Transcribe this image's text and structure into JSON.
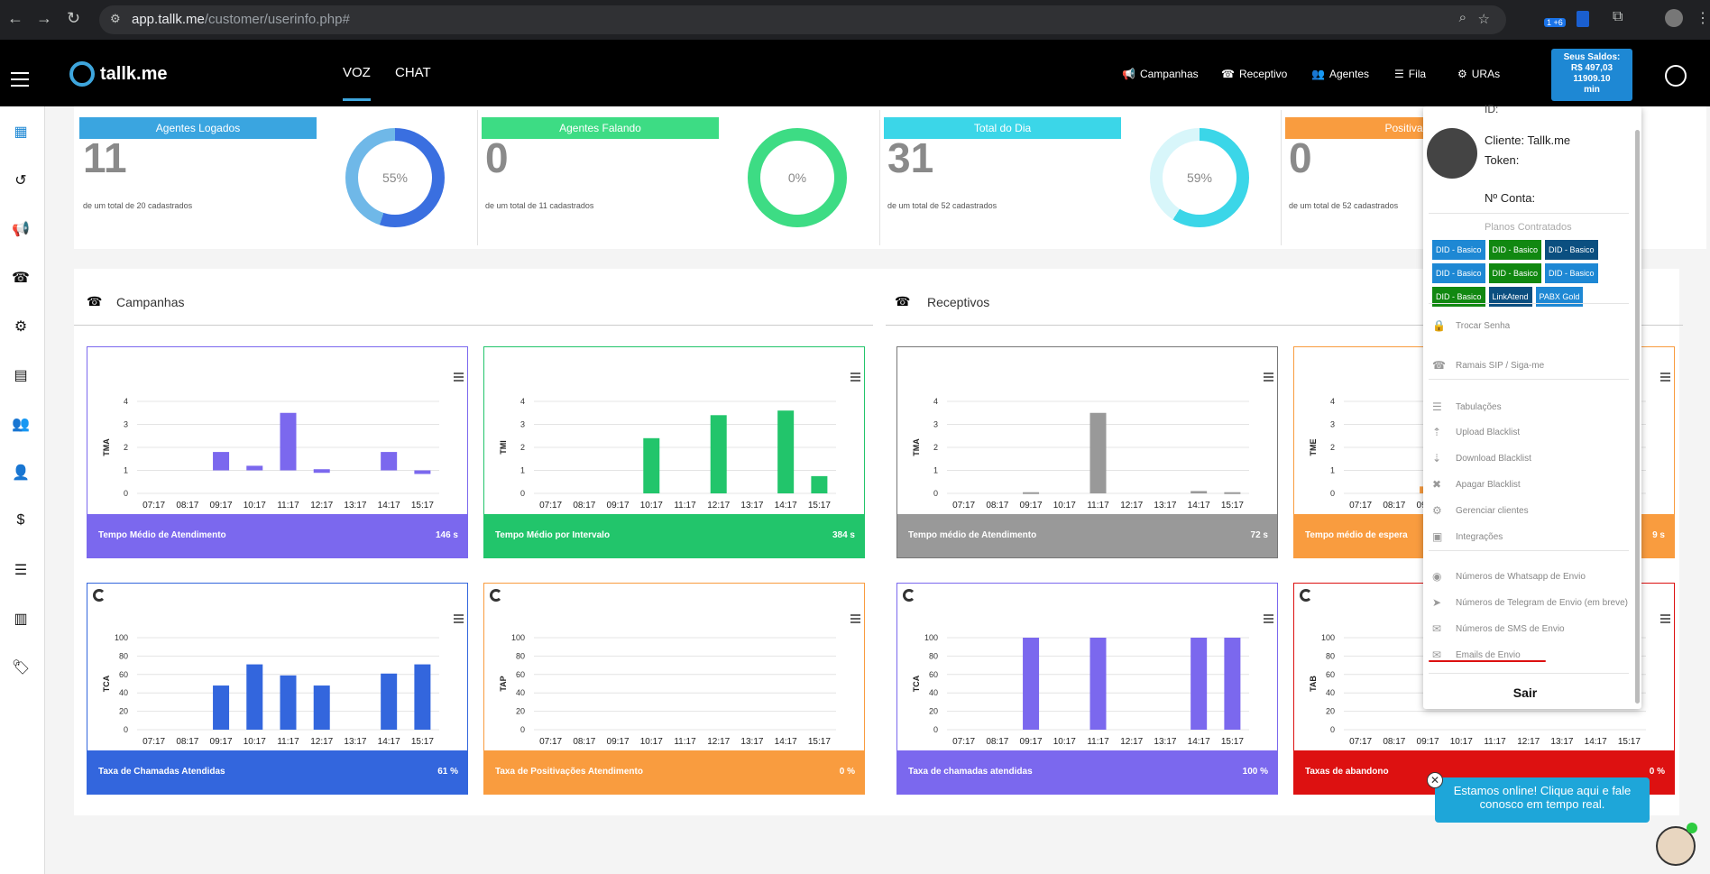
{
  "browser": {
    "url_host": "app.tallk.me",
    "url_path": "/customer/userinfo.php#",
    "ext_badge": "1 +6"
  },
  "header": {
    "logo": "tallk.me",
    "tabs": [
      "VOZ",
      "CHAT"
    ],
    "nav": [
      "Campanhas",
      "Receptivo",
      "Agentes",
      "Fila",
      "URAs"
    ],
    "saldo": [
      "Seus Saldos:",
      "R$ 497,03",
      "11909.10",
      "min"
    ]
  },
  "stats": [
    {
      "label": "Agentes Logados",
      "value": "11",
      "sub": "de um total de 20 cadastrados",
      "pct": 55,
      "pct_label": "55%",
      "color": "#3aa5e0",
      "ring": "#3a6fe0"
    },
    {
      "label": "Agentes Falando",
      "value": "0",
      "sub": "de um total de 11 cadastrados",
      "pct": 0,
      "pct_label": "0%",
      "color": "#3ddc84",
      "ring": "#3ddc84"
    },
    {
      "label": "Total do Dia",
      "value": "31",
      "sub": "de um total de 52 cadastrados",
      "pct": 59,
      "pct_label": "59%",
      "color": "#3bd6e8",
      "ring": "#3bd6e8"
    },
    {
      "label": "Positiva",
      "value": "0",
      "sub": "de um total de 52 cadastrados",
      "pct": 0,
      "pct_label": "",
      "color": "#f99c3f",
      "ring": "#f99c3f"
    }
  ],
  "sections": {
    "left": "Campanhas",
    "right": "Receptivos"
  },
  "charts": [
    {
      "ylabel": "TMA",
      "ymax": 4,
      "ticks": [
        0,
        1,
        2,
        3,
        4
      ],
      "values": [
        0,
        0,
        1.8,
        1.2,
        3.5,
        1.05,
        0,
        1.8,
        0.9
      ],
      "base": 1,
      "color": "#7b68ee",
      "footer": "Tempo Médio de Atendimento",
      "total": "146 s",
      "spinner": false
    },
    {
      "ylabel": "TMI",
      "ymax": 4,
      "ticks": [
        0,
        1,
        2,
        3,
        4
      ],
      "values": [
        0,
        0,
        0,
        2.4,
        0,
        3.4,
        0,
        3.6,
        0.75
      ],
      "base": 0,
      "color": "#22c56b",
      "footer": "Tempo Médio por Intervalo",
      "total": "384 s",
      "spinner": false
    },
    {
      "ylabel": "TMA",
      "ymax": 4,
      "ticks": [
        0,
        1,
        2,
        3,
        4
      ],
      "values": [
        0,
        0,
        0.05,
        0,
        3.5,
        0,
        0,
        0.1,
        0.05
      ],
      "base": 0,
      "color": "#999999",
      "footer": "Tempo médio de Atendimento",
      "total": "72 s",
      "spinner": false
    },
    {
      "ylabel": "TME",
      "ymax": 4,
      "ticks": [
        0,
        1,
        2,
        3,
        4
      ],
      "values": [
        0,
        0,
        0.3,
        0,
        0,
        0,
        0,
        0,
        0
      ],
      "base": 0,
      "color": "#f99c3f",
      "footer": "Tempo médio de espera",
      "total": "9 s",
      "spinner": false
    },
    {
      "ylabel": "TCA",
      "ymax": 100,
      "ticks": [
        0,
        20,
        40,
        60,
        80,
        100
      ],
      "values": [
        0,
        0,
        48,
        71,
        59,
        48,
        0,
        61,
        71
      ],
      "base": 0,
      "color": "#3366dd",
      "footer": "Taxa de Chamadas Atendidas",
      "total": "61 %",
      "spinner": true
    },
    {
      "ylabel": "TAP",
      "ymax": 100,
      "ticks": [
        0,
        20,
        40,
        60,
        80,
        100
      ],
      "values": [
        0,
        0,
        0,
        0,
        0,
        0,
        0,
        0,
        0
      ],
      "base": 0,
      "color": "#f99c3f",
      "footer": "Taxa de Positivações Atendimento",
      "total": "0 %",
      "spinner": true
    },
    {
      "ylabel": "TCA",
      "ymax": 100,
      "ticks": [
        0,
        20,
        40,
        60,
        80,
        100
      ],
      "values": [
        0,
        0,
        100,
        0,
        100,
        0,
        0,
        100,
        100
      ],
      "base": 0,
      "color": "#7b68ee",
      "footer": "Taxa de chamadas atendidas",
      "total": "100 %",
      "spinner": true
    },
    {
      "ylabel": "TAB",
      "ymax": 100,
      "ticks": [
        0,
        20,
        40,
        60,
        80,
        100
      ],
      "values": [
        0,
        0,
        0,
        0,
        0,
        0,
        0,
        0,
        0
      ],
      "base": 0,
      "color": "#dd1111",
      "footer": "Taxas de abandono",
      "total": "0 %",
      "spinner": true
    }
  ],
  "categories": [
    "07:17",
    "08:17",
    "09:17",
    "10:17",
    "11:17",
    "12:17",
    "13:17",
    "14:17",
    "15:17"
  ],
  "dropdown": {
    "id_label": "ID:",
    "cliente": "Cliente: Tallk.me",
    "token": "Token:",
    "conta": "Nº Conta:",
    "planos_title": "Planos Contratados",
    "planos": [
      {
        "t": "DID - Basico",
        "c": "#1e88d4"
      },
      {
        "t": "DID - Basico",
        "c": "#118811"
      },
      {
        "t": "DID - Basico",
        "c": "#0b4f80"
      },
      {
        "t": "DID - Basico",
        "c": "#1e88d4"
      },
      {
        "t": "DID - Basico",
        "c": "#118811"
      },
      {
        "t": "DID - Basico",
        "c": "#1e88d4"
      },
      {
        "t": "DID - Basico",
        "c": "#118811"
      },
      {
        "t": "LinkAtend",
        "c": "#0b4f80"
      },
      {
        "t": "PABX Gold",
        "c": "#1e88d4"
      }
    ],
    "items": [
      "Trocar Senha",
      "Ramais SIP / Siga-me",
      "Tabulações",
      "Upload Blacklist",
      "Download Blacklist",
      "Apagar Blacklist",
      "Gerenciar clientes",
      "Integrações",
      "Números de Whatsapp de Envio",
      "Números de Telegram de Envio (em breve)",
      "Números de SMS de Envio",
      "Emails de Envio"
    ],
    "sair": "Sair"
  },
  "chat": {
    "text": "Estamos online! Clique aqui e fale conosco em tempo real."
  }
}
